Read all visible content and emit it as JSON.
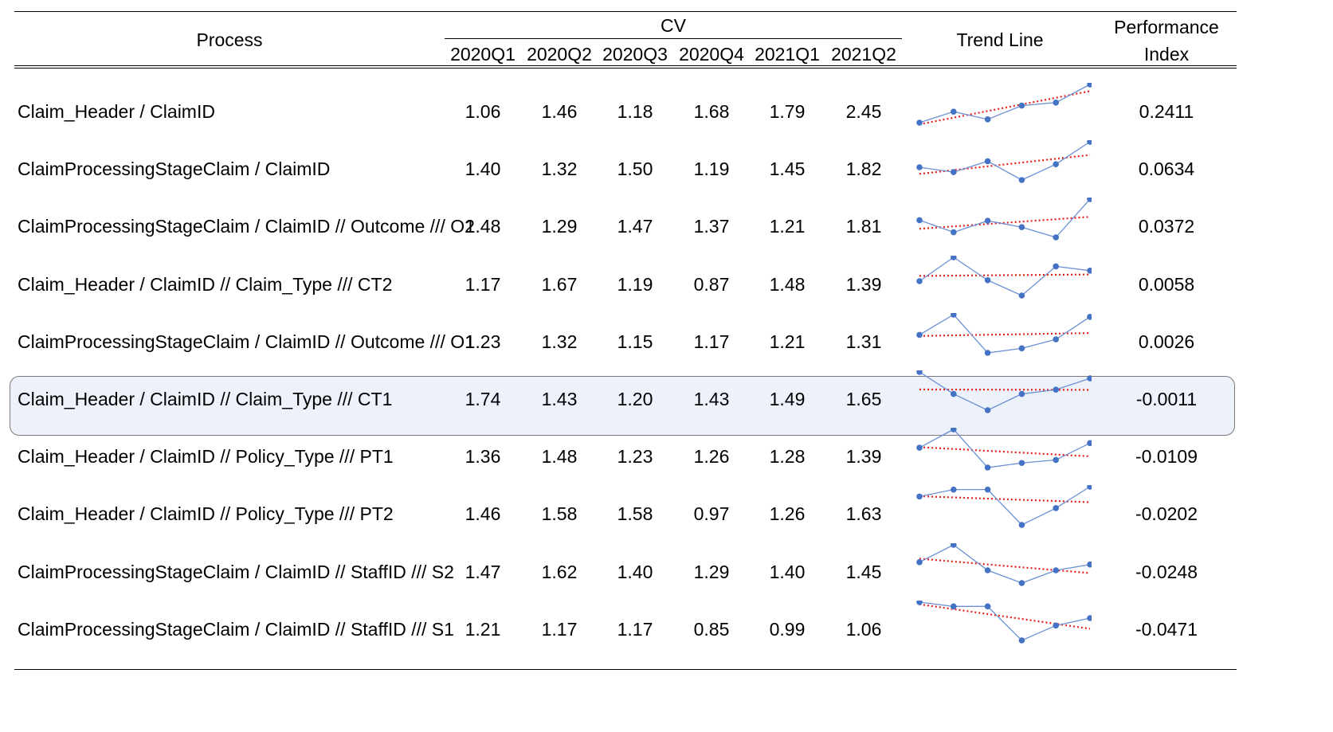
{
  "header": {
    "process": "Process",
    "cv": "CV",
    "quarters": [
      "2020Q1",
      "2020Q2",
      "2020Q3",
      "2020Q4",
      "2021Q1",
      "2021Q2"
    ],
    "trend": "Trend Line",
    "perf_line1": "Performance",
    "perf_line2": "Index"
  },
  "highlight_row": 5,
  "colors": {
    "spark_line": "#6a8fd4",
    "spark_point": "#4472c4",
    "trend": "#e8201c",
    "highlight_bg": "#edf1fa"
  },
  "rows": [
    {
      "process": "Claim_Header / ClaimID",
      "cv": [
        "1.06",
        "1.46",
        "1.18",
        "1.68",
        "1.79",
        "2.45"
      ],
      "pi": "0.2411"
    },
    {
      "process": "ClaimProcessingStageClaim / ClaimID",
      "cv": [
        "1.40",
        "1.32",
        "1.50",
        "1.19",
        "1.45",
        "1.82"
      ],
      "pi": "0.0634"
    },
    {
      "process": "ClaimProcessingStageClaim / ClaimID // Outcome /// O2",
      "cv": [
        "1.48",
        "1.29",
        "1.47",
        "1.37",
        "1.21",
        "1.81"
      ],
      "pi": "0.0372"
    },
    {
      "process": "Claim_Header / ClaimID // Claim_Type /// CT2",
      "cv": [
        "1.17",
        "1.67",
        "1.19",
        "0.87",
        "1.48",
        "1.39"
      ],
      "pi": "0.0058"
    },
    {
      "process": "ClaimProcessingStageClaim / ClaimID // Outcome /// O1",
      "cv": [
        "1.23",
        "1.32",
        "1.15",
        "1.17",
        "1.21",
        "1.31"
      ],
      "pi": "0.0026"
    },
    {
      "process": "Claim_Header / ClaimID // Claim_Type /// CT1",
      "cv": [
        "1.74",
        "1.43",
        "1.20",
        "1.43",
        "1.49",
        "1.65"
      ],
      "pi": "-0.0011"
    },
    {
      "process": "Claim_Header / ClaimID // Policy_Type /// PT1",
      "cv": [
        "1.36",
        "1.48",
        "1.23",
        "1.26",
        "1.28",
        "1.39"
      ],
      "pi": "-0.0109"
    },
    {
      "process": "Claim_Header / ClaimID // Policy_Type /// PT2",
      "cv": [
        "1.46",
        "1.58",
        "1.58",
        "0.97",
        "1.26",
        "1.63"
      ],
      "pi": "-0.0202"
    },
    {
      "process": "ClaimProcessingStageClaim / ClaimID // StaffID /// S2",
      "cv": [
        "1.47",
        "1.62",
        "1.40",
        "1.29",
        "1.40",
        "1.45"
      ],
      "pi": "-0.0248"
    },
    {
      "process": "ClaimProcessingStageClaim / ClaimID // StaffID /// S1",
      "cv": [
        "1.21",
        "1.17",
        "1.17",
        "0.85",
        "0.99",
        "1.06"
      ],
      "pi": "-0.0471"
    }
  ]
}
